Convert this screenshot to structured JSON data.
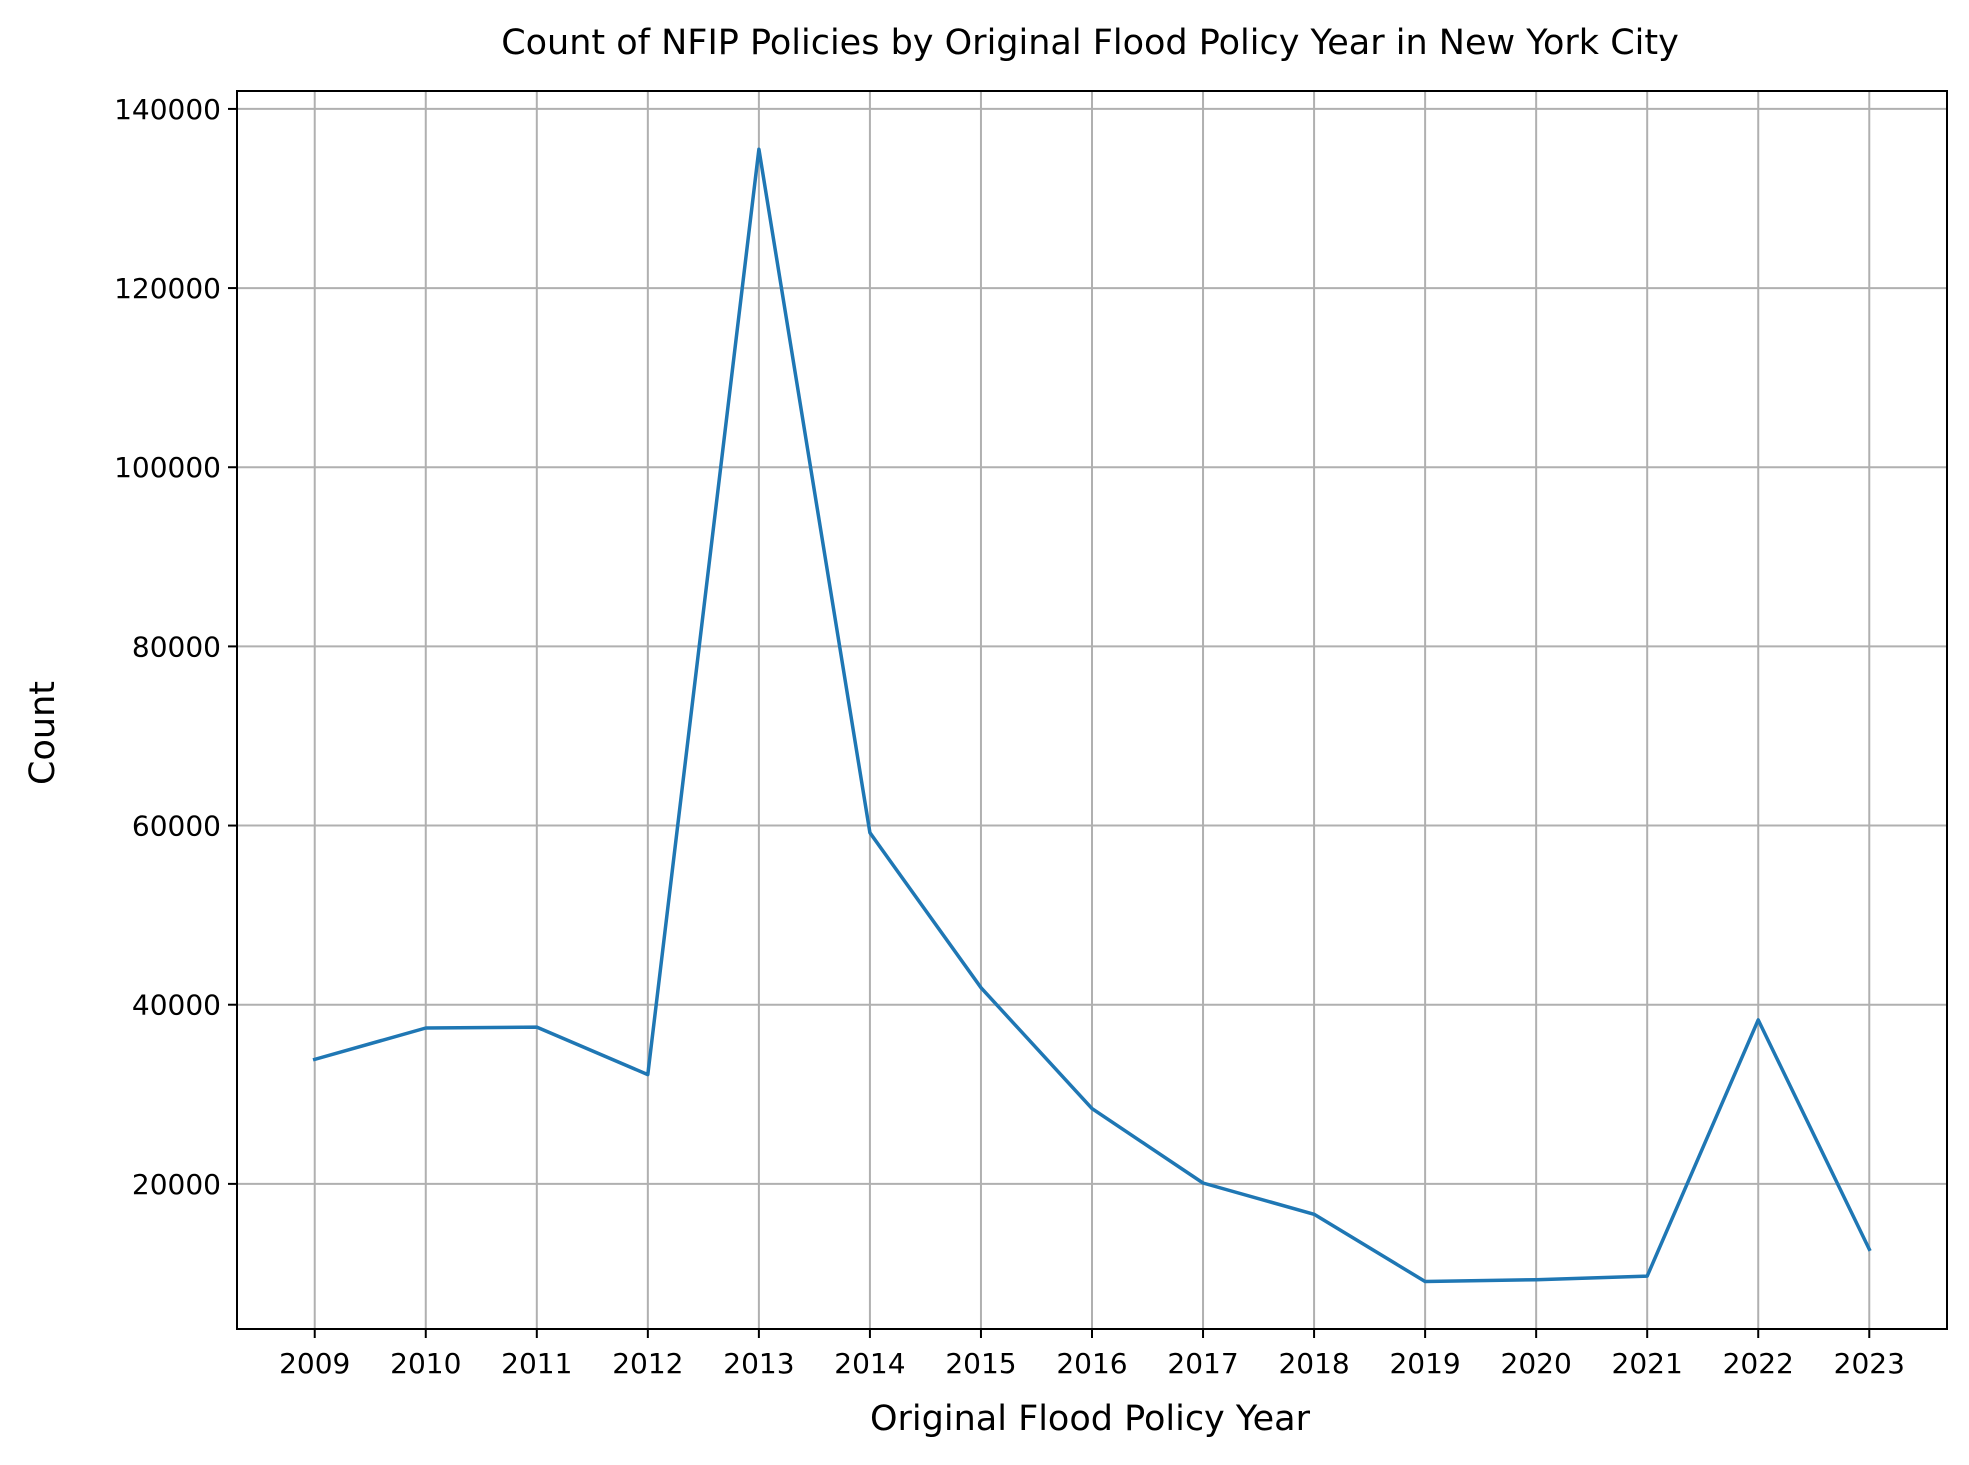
{
  "chart_data": {
    "type": "line",
    "title": "Count of NFIP Policies by Original Flood Policy Year in New York City",
    "xlabel": "Original Flood Policy Year",
    "ylabel": "Count",
    "categories": [
      "2009",
      "2010",
      "2011",
      "2012",
      "2013",
      "2014",
      "2015",
      "2016",
      "2017",
      "2018",
      "2019",
      "2020",
      "2021",
      "2022",
      "2023"
    ],
    "series": [
      {
        "name": "Count",
        "color": "#1f77b4",
        "values": [
          33900,
          37400,
          37500,
          32200,
          135500,
          59200,
          41900,
          28400,
          20100,
          16600,
          9100,
          9300,
          9700,
          38300,
          12700
        ]
      }
    ],
    "yticks": [
      20000,
      40000,
      60000,
      80000,
      100000,
      120000,
      140000
    ],
    "ylim": [
      3800,
      142000
    ],
    "xlim": [
      -0.7,
      14.7
    ],
    "grid": true,
    "legend": "none"
  }
}
